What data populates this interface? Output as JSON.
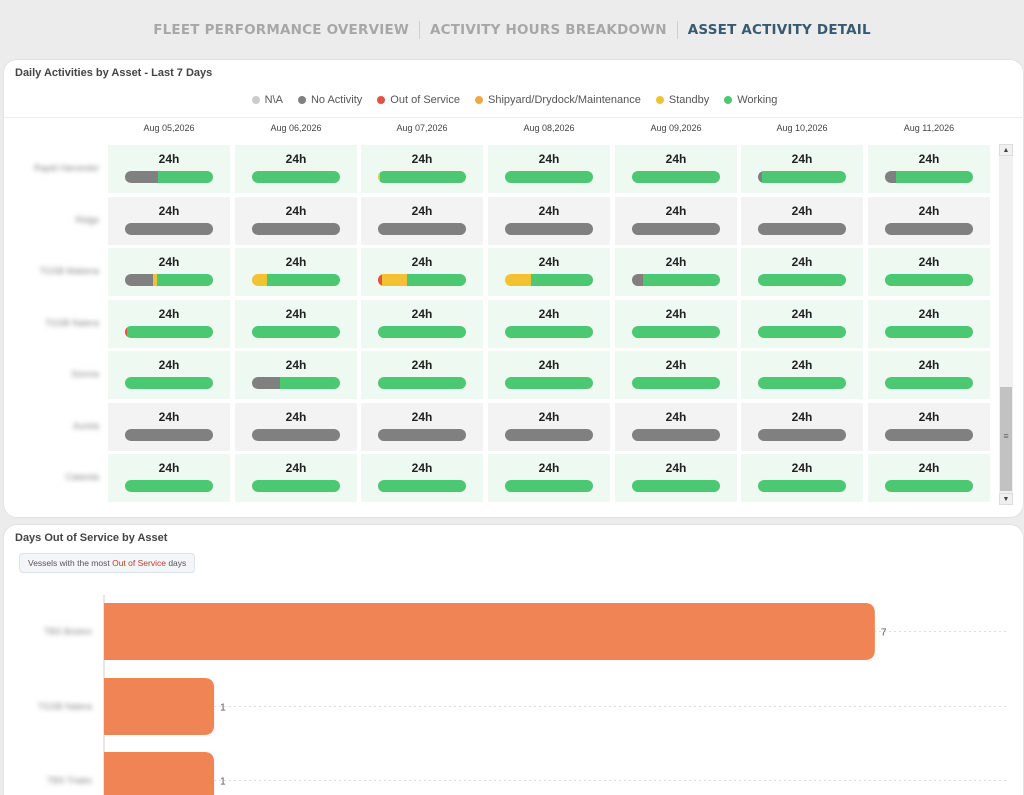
{
  "tabs": [
    {
      "label": "FLEET PERFORMANCE OVERVIEW",
      "active": false
    },
    {
      "label": "ACTIVITY HOURS BREAKDOWN",
      "active": false
    },
    {
      "label": "ASSET ACTIVITY DETAIL",
      "active": true
    }
  ],
  "daily_panel": {
    "title": "Daily Activities by Asset - Last 7 Days",
    "legend": [
      {
        "label": "N\\A",
        "color": "#cccccc"
      },
      {
        "label": "No Activity",
        "color": "#808080"
      },
      {
        "label": "Out of Service",
        "color": "#e2533f"
      },
      {
        "label": "Shipyard/Drydock/Maintenance",
        "color": "#f0a942"
      },
      {
        "label": "Standby",
        "color": "#f2c233"
      },
      {
        "label": "Working",
        "color": "#4cc772"
      }
    ],
    "dates": [
      "Aug 05,2026",
      "Aug 06,2026",
      "Aug 07,2026",
      "Aug 08,2026",
      "Aug 09,2026",
      "Aug 10,2026",
      "Aug 11,2026"
    ],
    "assets": [
      {
        "name": "Rapid Harvester",
        "cells": [
          {
            "hours": "24h",
            "bg": "#eefaf1",
            "segments": [
              [
                "#808080",
                0.38
              ],
              [
                "#4cc772",
                0.62
              ]
            ]
          },
          {
            "hours": "24h",
            "bg": "#eefaf1",
            "segments": [
              [
                "#4cc772",
                1
              ]
            ]
          },
          {
            "hours": "24h",
            "bg": "#eefaf1",
            "segments": [
              [
                "#f2c233",
                0.02
              ],
              [
                "#4cc772",
                0.98
              ]
            ]
          },
          {
            "hours": "24h",
            "bg": "#eefaf1",
            "segments": [
              [
                "#4cc772",
                1
              ]
            ]
          },
          {
            "hours": "24h",
            "bg": "#eefaf1",
            "segments": [
              [
                "#4cc772",
                1
              ]
            ]
          },
          {
            "hours": "24h",
            "bg": "#eefaf1",
            "segments": [
              [
                "#808080",
                0.05
              ],
              [
                "#4cc772",
                0.95
              ]
            ]
          },
          {
            "hours": "24h",
            "bg": "#eefaf1",
            "segments": [
              [
                "#808080",
                0.13
              ],
              [
                "#4cc772",
                0.87
              ]
            ]
          }
        ]
      },
      {
        "name": "Ridge",
        "cells": [
          {
            "hours": "24h",
            "bg": "#f3f3f3",
            "segments": [
              [
                "#808080",
                1
              ]
            ]
          },
          {
            "hours": "24h",
            "bg": "#f3f3f3",
            "segments": [
              [
                "#808080",
                1
              ]
            ]
          },
          {
            "hours": "24h",
            "bg": "#f3f3f3",
            "segments": [
              [
                "#808080",
                1
              ]
            ]
          },
          {
            "hours": "24h",
            "bg": "#f3f3f3",
            "segments": [
              [
                "#808080",
                1
              ]
            ]
          },
          {
            "hours": "24h",
            "bg": "#f3f3f3",
            "segments": [
              [
                "#808080",
                1
              ]
            ]
          },
          {
            "hours": "24h",
            "bg": "#f3f3f3",
            "segments": [
              [
                "#808080",
                1
              ]
            ]
          },
          {
            "hours": "24h",
            "bg": "#f3f3f3",
            "segments": [
              [
                "#808080",
                1
              ]
            ]
          }
        ]
      },
      {
        "name": "TGSB Mabena",
        "cells": [
          {
            "hours": "24h",
            "bg": "#eefaf1",
            "segments": [
              [
                "#808080",
                0.32
              ],
              [
                "#f2c233",
                0.04
              ],
              [
                "#4cc772",
                0.64
              ]
            ]
          },
          {
            "hours": "24h",
            "bg": "#eefaf1",
            "segments": [
              [
                "#f2c233",
                0.17
              ],
              [
                "#4cc772",
                0.83
              ]
            ]
          },
          {
            "hours": "24h",
            "bg": "#eefaf1",
            "segments": [
              [
                "#e2533f",
                0.05
              ],
              [
                "#f2c233",
                0.28
              ],
              [
                "#4cc772",
                0.67
              ]
            ]
          },
          {
            "hours": "24h",
            "bg": "#eefaf1",
            "segments": [
              [
                "#f2c233",
                0.3
              ],
              [
                "#4cc772",
                0.7
              ]
            ]
          },
          {
            "hours": "24h",
            "bg": "#eefaf1",
            "segments": [
              [
                "#808080",
                0.13
              ],
              [
                "#4cc772",
                0.87
              ]
            ]
          },
          {
            "hours": "24h",
            "bg": "#eefaf1",
            "segments": [
              [
                "#4cc772",
                1
              ]
            ]
          },
          {
            "hours": "24h",
            "bg": "#eefaf1",
            "segments": [
              [
                "#4cc772",
                1
              ]
            ]
          }
        ]
      },
      {
        "name": "TGSB Natera",
        "cells": [
          {
            "hours": "24h",
            "bg": "#eefaf1",
            "segments": [
              [
                "#e2533f",
                0.02
              ],
              [
                "#4cc772",
                0.98
              ]
            ]
          },
          {
            "hours": "24h",
            "bg": "#eefaf1",
            "segments": [
              [
                "#4cc772",
                1
              ]
            ]
          },
          {
            "hours": "24h",
            "bg": "#eefaf1",
            "segments": [
              [
                "#4cc772",
                1
              ]
            ]
          },
          {
            "hours": "24h",
            "bg": "#eefaf1",
            "segments": [
              [
                "#4cc772",
                1
              ]
            ]
          },
          {
            "hours": "24h",
            "bg": "#eefaf1",
            "segments": [
              [
                "#4cc772",
                1
              ]
            ]
          },
          {
            "hours": "24h",
            "bg": "#eefaf1",
            "segments": [
              [
                "#4cc772",
                1
              ]
            ]
          },
          {
            "hours": "24h",
            "bg": "#eefaf1",
            "segments": [
              [
                "#4cc772",
                1
              ]
            ]
          }
        ]
      },
      {
        "name": "Sionna",
        "cells": [
          {
            "hours": "24h",
            "bg": "#eefaf1",
            "segments": [
              [
                "#4cc772",
                1
              ]
            ]
          },
          {
            "hours": "24h",
            "bg": "#eefaf1",
            "segments": [
              [
                "#808080",
                0.32
              ],
              [
                "#4cc772",
                0.68
              ]
            ]
          },
          {
            "hours": "24h",
            "bg": "#eefaf1",
            "segments": [
              [
                "#4cc772",
                1
              ]
            ]
          },
          {
            "hours": "24h",
            "bg": "#eefaf1",
            "segments": [
              [
                "#4cc772",
                1
              ]
            ]
          },
          {
            "hours": "24h",
            "bg": "#eefaf1",
            "segments": [
              [
                "#4cc772",
                1
              ]
            ]
          },
          {
            "hours": "24h",
            "bg": "#eefaf1",
            "segments": [
              [
                "#4cc772",
                1
              ]
            ]
          },
          {
            "hours": "24h",
            "bg": "#eefaf1",
            "segments": [
              [
                "#4cc772",
                1
              ]
            ]
          }
        ]
      },
      {
        "name": "Aurela",
        "cells": [
          {
            "hours": "24h",
            "bg": "#f3f3f3",
            "segments": [
              [
                "#808080",
                1
              ]
            ]
          },
          {
            "hours": "24h",
            "bg": "#f3f3f3",
            "segments": [
              [
                "#808080",
                1
              ]
            ]
          },
          {
            "hours": "24h",
            "bg": "#f3f3f3",
            "segments": [
              [
                "#808080",
                1
              ]
            ]
          },
          {
            "hours": "24h",
            "bg": "#f3f3f3",
            "segments": [
              [
                "#808080",
                1
              ]
            ]
          },
          {
            "hours": "24h",
            "bg": "#f3f3f3",
            "segments": [
              [
                "#808080",
                1
              ]
            ]
          },
          {
            "hours": "24h",
            "bg": "#f3f3f3",
            "segments": [
              [
                "#808080",
                1
              ]
            ]
          },
          {
            "hours": "24h",
            "bg": "#f3f3f3",
            "segments": [
              [
                "#808080",
                1
              ]
            ]
          }
        ]
      },
      {
        "name": "Calanda",
        "cells": [
          {
            "hours": "24h",
            "bg": "#eefaf1",
            "segments": [
              [
                "#4cc772",
                1
              ]
            ]
          },
          {
            "hours": "24h",
            "bg": "#eefaf1",
            "segments": [
              [
                "#4cc772",
                1
              ]
            ]
          },
          {
            "hours": "24h",
            "bg": "#eefaf1",
            "segments": [
              [
                "#4cc772",
                1
              ]
            ]
          },
          {
            "hours": "24h",
            "bg": "#eefaf1",
            "segments": [
              [
                "#4cc772",
                1
              ]
            ]
          },
          {
            "hours": "24h",
            "bg": "#eefaf1",
            "segments": [
              [
                "#4cc772",
                1
              ]
            ]
          },
          {
            "hours": "24h",
            "bg": "#eefaf1",
            "segments": [
              [
                "#4cc772",
                1
              ]
            ]
          },
          {
            "hours": "24h",
            "bg": "#eefaf1",
            "segments": [
              [
                "#4cc772",
                1
              ]
            ]
          }
        ]
      }
    ],
    "scrollbar": {
      "up_icon": "caret-up-icon",
      "down_icon": "caret-down-icon",
      "grip_icon": "grip-lines-icon"
    }
  },
  "oos_panel": {
    "title": "Days Out of Service by Asset",
    "badge": {
      "prefix": "Vessels with the most ",
      "highlight": "Out of Service",
      "suffix": " days"
    }
  },
  "chart_data": {
    "type": "bar",
    "orientation": "horizontal",
    "categories": [
      "TBS Boston",
      "TGSB Natera",
      "TBS Triabo"
    ],
    "values": [
      7,
      1,
      1
    ],
    "xlim": [
      0,
      8.2
    ],
    "bar_color": "#f08455",
    "data_labels": true,
    "grid": true
  }
}
